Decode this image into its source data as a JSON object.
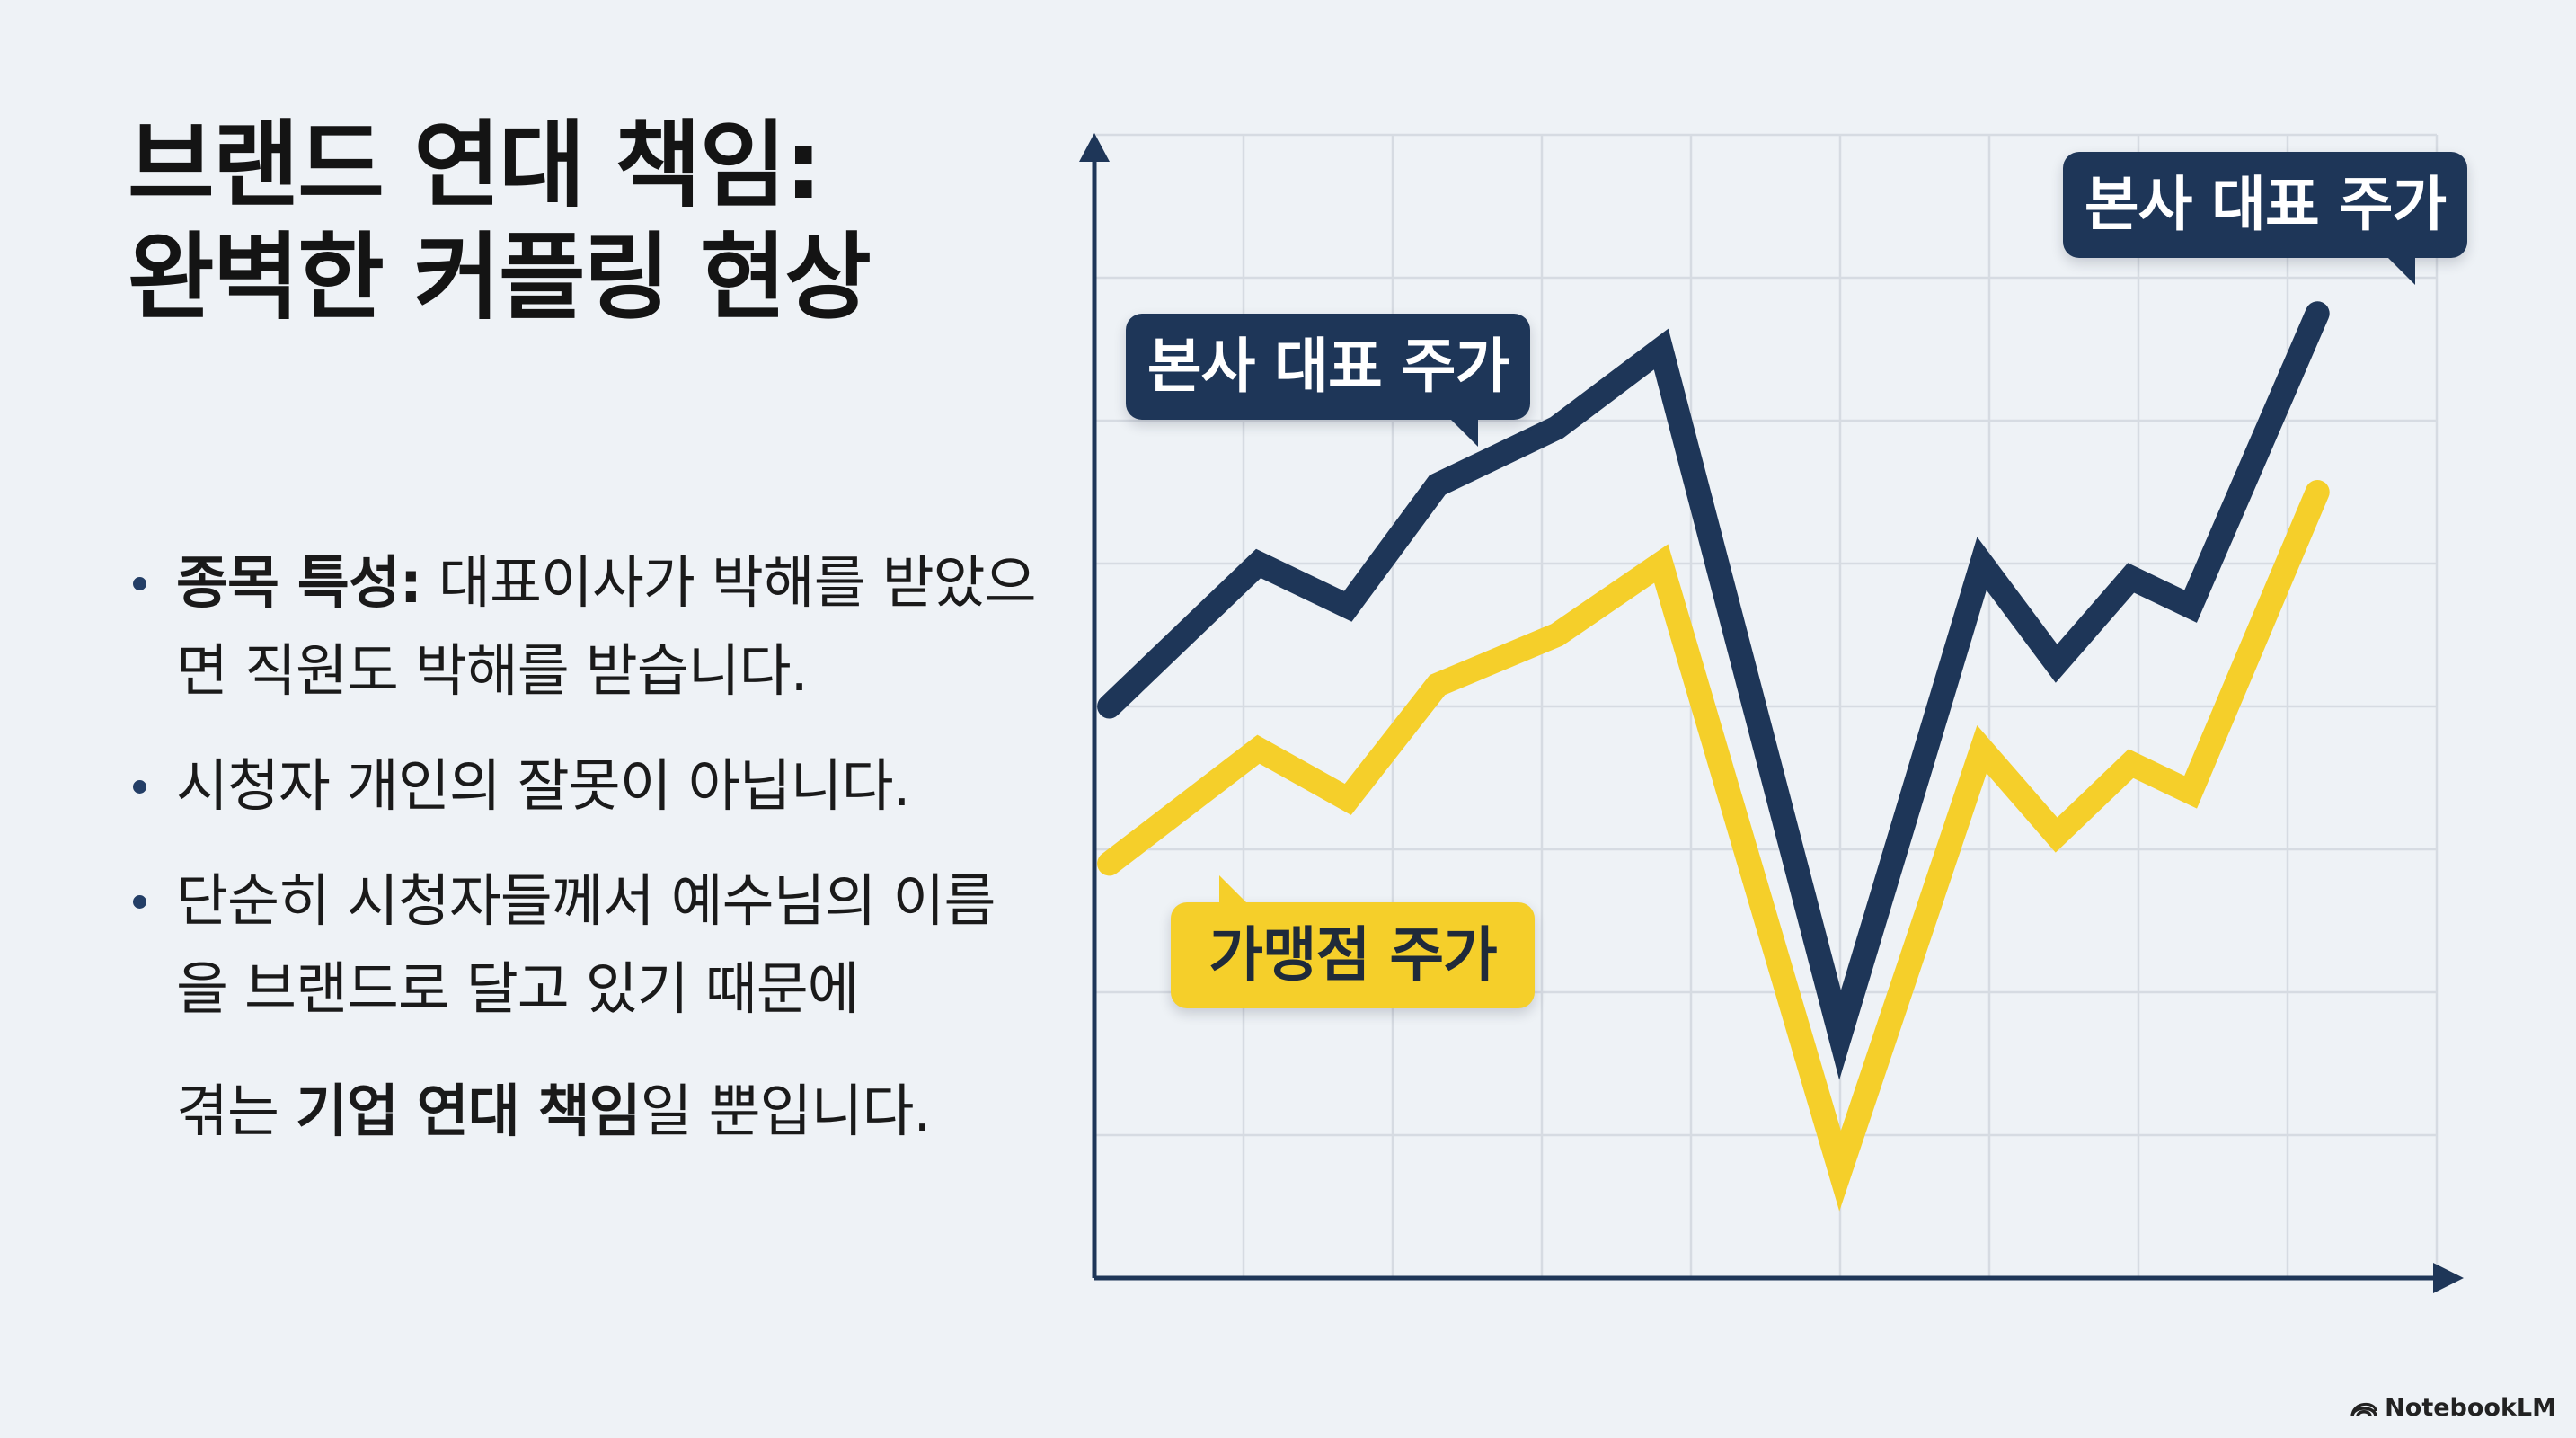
{
  "title": {
    "line1": "브랜드 연대 책임:",
    "line2": "완벽한 커플링 현상"
  },
  "bullets": [
    {
      "bold": "종목 특성:",
      "text": " 대표이사가 박해를 받았으면 직원도 박해를 받습니다."
    },
    {
      "text": "시청자 개인의 잘못이 아닙니다."
    },
    {
      "text": "단순히 시청자들께서 예수님의 이름을 브랜드로 달고 있기 때문에",
      "extra_pre": "겪는 ",
      "extra_bold": "기업 연대 책임",
      "extra_post": "일 뿐입니다."
    }
  ],
  "callouts": {
    "hq_mid": "본사 대표 주가",
    "hq_top": "본사 대표 주가",
    "franchise": "가맹점 주가"
  },
  "watermark": "NotebookLM",
  "colors": {
    "background": "#eef2f6",
    "navy": "#1e3658",
    "yellow": "#f5cf2a",
    "grid": "#d6dbe2",
    "axis": "#1e3658"
  },
  "chart_data": {
    "type": "line",
    "title": "",
    "xlabel": "",
    "ylabel": "",
    "xlim": [
      0,
      9
    ],
    "ylim": [
      0,
      8
    ],
    "grid": true,
    "axes_ticks": false,
    "series": [
      {
        "name": "본사 대표 주가",
        "color": "#1e3658",
        "x": [
          0.1,
          1.1,
          1.7,
          2.3,
          3.1,
          3.8,
          5.0,
          5.95,
          6.45,
          6.95,
          7.35,
          8.2
        ],
        "y": [
          4.0,
          5.0,
          4.7,
          5.55,
          5.95,
          6.5,
          1.7,
          5.0,
          4.3,
          4.9,
          4.7,
          6.75
        ]
      },
      {
        "name": "가맹점 주가",
        "color": "#f5cf2a",
        "x": [
          0.1,
          1.1,
          1.7,
          2.3,
          3.1,
          3.8,
          5.0,
          5.95,
          6.45,
          6.95,
          7.35,
          8.2
        ],
        "y": [
          2.9,
          3.7,
          3.35,
          4.15,
          4.5,
          5.0,
          0.75,
          3.7,
          3.1,
          3.6,
          3.4,
          5.5
        ]
      }
    ]
  }
}
